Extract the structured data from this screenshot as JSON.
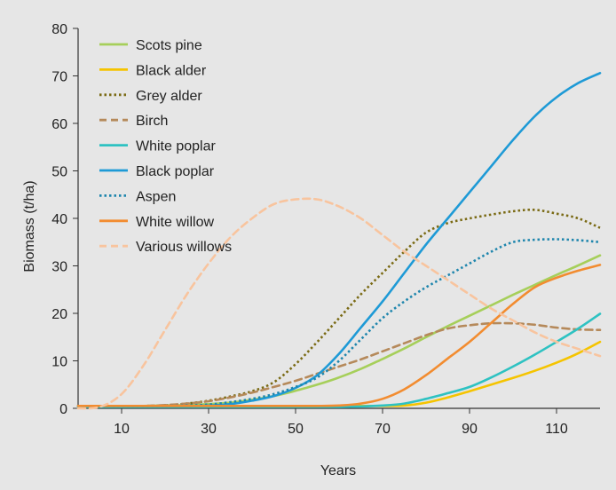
{
  "chart_data": {
    "type": "line",
    "title": "",
    "xlabel": "Years",
    "ylabel": "Biomass (t/ha)",
    "xlim": [
      0,
      120
    ],
    "ylim": [
      0,
      80
    ],
    "xticks": [
      10,
      30,
      50,
      70,
      90,
      110
    ],
    "yticks": [
      0,
      10,
      20,
      30,
      40,
      50,
      60,
      70,
      80
    ],
    "grid": false,
    "legend_position": "top-left",
    "x": [
      0,
      5,
      10,
      15,
      20,
      25,
      30,
      35,
      40,
      45,
      50,
      55,
      60,
      65,
      70,
      75,
      80,
      85,
      90,
      95,
      100,
      105,
      110,
      115,
      120
    ],
    "series": [
      {
        "name": "Scots pine",
        "color": "#a6cf5a",
        "dash": "solid",
        "values": [
          0.5,
          0.5,
          0.5,
          0.5,
          0.6,
          0.7,
          0.9,
          1.2,
          1.8,
          2.6,
          3.7,
          5.0,
          6.5,
          8.3,
          10.4,
          12.6,
          15.0,
          17.3,
          19.5,
          21.7,
          23.9,
          26.0,
          28.1,
          30.1,
          32.2
        ]
      },
      {
        "name": "Black alder",
        "color": "#f5c400",
        "dash": "solid",
        "values": [
          0.5,
          0.5,
          0.5,
          0.5,
          0.5,
          0.5,
          0.5,
          0.5,
          0.5,
          0.5,
          0.5,
          0.5,
          0.5,
          0.5,
          0.5,
          0.6,
          1.2,
          2.3,
          3.6,
          5.0,
          6.4,
          7.9,
          9.6,
          11.6,
          14.0
        ]
      },
      {
        "name": "Grey alder",
        "color": "#7a6a14",
        "dash": "dotted",
        "values": [
          0.5,
          0.5,
          0.5,
          0.5,
          0.6,
          1.0,
          1.6,
          2.5,
          3.6,
          5.5,
          9.3,
          14.0,
          19.0,
          24.0,
          28.5,
          33.0,
          37.0,
          39.0,
          40.0,
          40.8,
          41.5,
          41.8,
          41.0,
          40.0,
          38.0
        ]
      },
      {
        "name": "Birch",
        "color": "#b5895a",
        "dash": "dashed",
        "values": [
          0.5,
          0.5,
          0.5,
          0.5,
          0.7,
          1.0,
          1.5,
          2.3,
          3.3,
          4.5,
          5.8,
          7.3,
          8.8,
          10.3,
          12.0,
          13.7,
          15.4,
          16.8,
          17.5,
          17.9,
          17.9,
          17.6,
          17.0,
          16.6,
          16.5
        ]
      },
      {
        "name": "White poplar",
        "color": "#2ec2c2",
        "dash": "solid",
        "values": [
          0.3,
          0.3,
          0.3,
          0.3,
          0.3,
          0.3,
          0.3,
          0.3,
          0.3,
          0.3,
          0.3,
          0.3,
          0.3,
          0.4,
          0.6,
          1.0,
          2.0,
          3.2,
          4.5,
          6.5,
          8.8,
          11.3,
          14.0,
          16.8,
          19.9
        ]
      },
      {
        "name": "Black poplar",
        "color": "#1e9ad6",
        "dash": "solid",
        "values": [
          0.5,
          0.5,
          0.5,
          0.5,
          0.5,
          0.5,
          0.6,
          0.9,
          1.6,
          2.6,
          4.3,
          7.0,
          11.5,
          17.0,
          22.5,
          28.5,
          34.5,
          40.0,
          45.5,
          51.0,
          56.5,
          61.5,
          65.5,
          68.5,
          70.6
        ]
      },
      {
        "name": "Aspen",
        "color": "#1f86ad",
        "dash": "dotted",
        "values": [
          0.5,
          0.5,
          0.5,
          0.5,
          0.5,
          0.6,
          0.8,
          1.3,
          2.0,
          3.0,
          4.5,
          6.5,
          10.0,
          14.5,
          19.0,
          22.5,
          25.5,
          28.0,
          30.5,
          33.0,
          35.0,
          35.5,
          35.6,
          35.4,
          35.0
        ]
      },
      {
        "name": "White willow",
        "color": "#f28c30",
        "dash": "solid",
        "values": [
          0.5,
          0.5,
          0.5,
          0.5,
          0.5,
          0.5,
          0.5,
          0.5,
          0.5,
          0.5,
          0.5,
          0.5,
          0.6,
          1.0,
          2.0,
          4.0,
          7.0,
          10.5,
          14.0,
          18.0,
          22.0,
          25.5,
          27.5,
          29.0,
          30.2
        ]
      },
      {
        "name": "Various willows",
        "color": "#f8c49e",
        "dash": "dashed",
        "values": [
          0.0,
          0.3,
          3.0,
          9.0,
          16.5,
          24.0,
          30.5,
          36.0,
          40.0,
          43.0,
          44.0,
          44.0,
          42.5,
          40.0,
          36.5,
          33.0,
          30.0,
          27.0,
          24.0,
          21.0,
          18.5,
          16.0,
          14.0,
          12.5,
          11.0
        ]
      }
    ]
  }
}
